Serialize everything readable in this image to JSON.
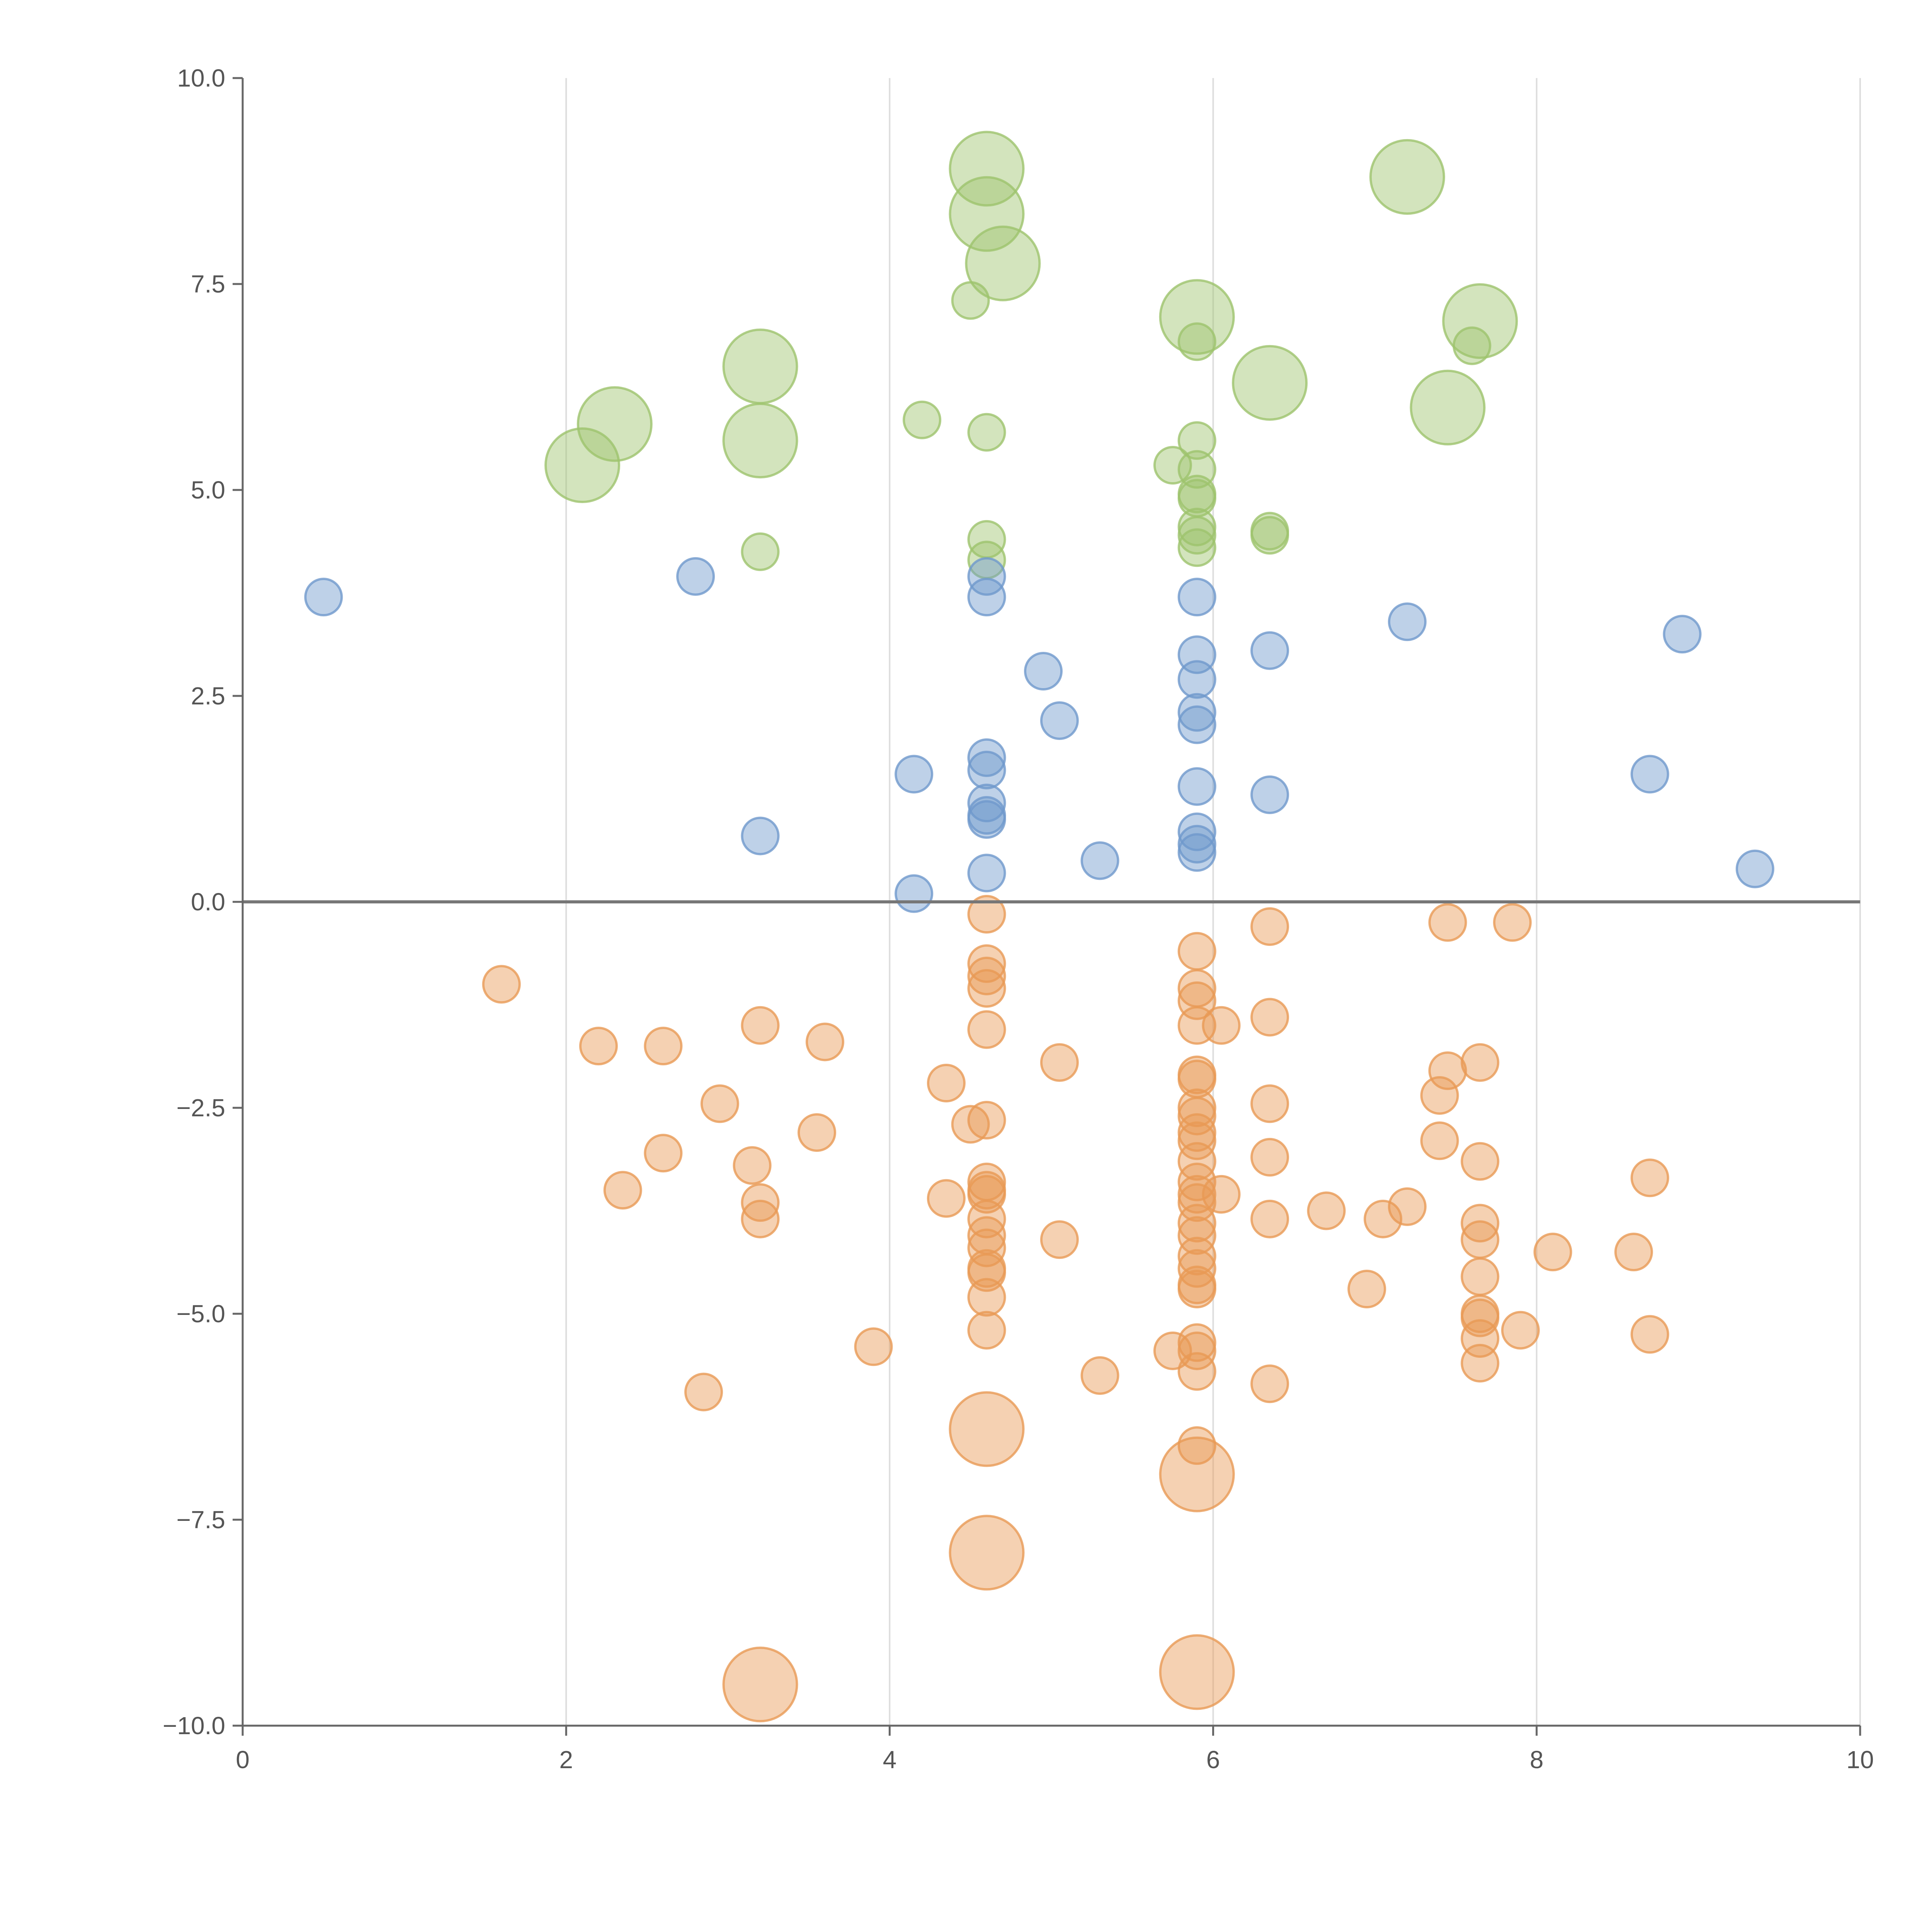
{
  "colors": {
    "positive_top": "#9dc36d",
    "positive": "#6f98cc",
    "negative": "#e89a55",
    "axis": "#666666",
    "grid": "#dddddd",
    "zero_line": "#777777",
    "tick_text": "#555555"
  },
  "chart_data": {
    "type": "scatter",
    "title": "",
    "xlabel": "",
    "ylabel": "",
    "xlim": [
      0,
      10
    ],
    "ylim": [
      -10,
      10
    ],
    "x_ticks": [
      0,
      2,
      4,
      6,
      8,
      10
    ],
    "x_tick_labels": [
      "0",
      "2",
      "4",
      "6",
      "8",
      "10"
    ],
    "y_ticks": [
      10,
      7.5,
      5,
      2.5,
      0,
      -2.5,
      -5,
      -7.5,
      -10
    ],
    "y_tick_labels": [
      "10.0",
      "7.5",
      "5.0",
      "2.5",
      "0.0",
      "−2.5",
      "−5.0",
      "−7.5",
      "−10.0"
    ],
    "grid": "vertical",
    "series": [
      {
        "name": "top",
        "color_key": "positive_top",
        "points": [
          [
            4.6,
            8.9,
            1.9
          ],
          [
            4.6,
            8.35,
            1.9
          ],
          [
            4.7,
            7.75,
            1.9
          ],
          [
            4.5,
            7.3,
            0.9
          ],
          [
            7.2,
            8.8,
            1.9
          ],
          [
            5.9,
            7.1,
            1.9
          ],
          [
            5.9,
            6.8,
            0.9
          ],
          [
            7.65,
            7.05,
            1.9
          ],
          [
            7.6,
            6.75,
            0.9
          ],
          [
            6.35,
            6.3,
            1.9
          ],
          [
            7.45,
            6.0,
            1.9
          ],
          [
            3.2,
            6.5,
            1.9
          ],
          [
            3.2,
            5.6,
            1.9
          ],
          [
            2.3,
            5.8,
            1.9
          ],
          [
            2.1,
            5.3,
            1.9
          ],
          [
            4.2,
            5.85,
            0.9
          ],
          [
            4.6,
            5.7,
            0.9
          ],
          [
            5.75,
            5.3,
            0.9
          ],
          [
            5.9,
            5.6,
            0.9
          ],
          [
            5.9,
            5.25,
            0.9
          ],
          [
            5.9,
            4.95,
            0.9
          ],
          [
            5.9,
            4.9,
            0.9
          ],
          [
            5.9,
            4.55,
            0.9
          ],
          [
            5.9,
            4.45,
            0.9
          ],
          [
            5.9,
            4.3,
            0.9
          ],
          [
            6.35,
            4.5,
            0.9
          ],
          [
            6.35,
            4.45,
            0.9
          ],
          [
            4.6,
            4.4,
            0.9
          ],
          [
            4.6,
            4.15,
            0.9
          ],
          [
            3.2,
            4.25,
            0.9
          ]
        ]
      },
      {
        "name": "positive",
        "color_key": "positive",
        "points": [
          [
            0.5,
            3.7,
            0.9
          ],
          [
            2.8,
            3.95,
            0.9
          ],
          [
            4.6,
            3.95,
            0.9
          ],
          [
            4.6,
            3.7,
            0.9
          ],
          [
            5.9,
            3.7,
            0.9
          ],
          [
            7.2,
            3.4,
            0.9
          ],
          [
            8.9,
            3.25,
            0.9
          ],
          [
            6.35,
            3.05,
            0.9
          ],
          [
            5.9,
            3.0,
            0.9
          ],
          [
            4.95,
            2.8,
            0.9
          ],
          [
            5.9,
            2.7,
            0.9
          ],
          [
            5.9,
            2.3,
            0.9
          ],
          [
            5.05,
            2.2,
            0.9
          ],
          [
            5.9,
            2.15,
            0.9
          ],
          [
            4.6,
            1.75,
            0.9
          ],
          [
            4.6,
            1.6,
            0.9
          ],
          [
            4.15,
            1.55,
            0.9
          ],
          [
            8.7,
            1.55,
            0.9
          ],
          [
            5.9,
            1.4,
            0.9
          ],
          [
            6.35,
            1.3,
            0.9
          ],
          [
            4.6,
            1.2,
            0.9
          ],
          [
            4.6,
            1.05,
            0.9
          ],
          [
            4.6,
            1.0,
            0.9
          ],
          [
            5.9,
            0.85,
            0.9
          ],
          [
            3.2,
            0.8,
            0.9
          ],
          [
            5.9,
            0.7,
            0.9
          ],
          [
            5.9,
            0.6,
            0.9
          ],
          [
            5.3,
            0.5,
            0.9
          ],
          [
            4.6,
            0.35,
            0.9
          ],
          [
            9.35,
            0.4,
            0.9
          ],
          [
            4.15,
            0.1,
            0.9
          ]
        ]
      },
      {
        "name": "negative",
        "color_key": "negative",
        "points": [
          [
            4.6,
            -0.15,
            0.9
          ],
          [
            6.35,
            -0.3,
            0.9
          ],
          [
            7.45,
            -0.25,
            0.9
          ],
          [
            7.85,
            -0.25,
            0.9
          ],
          [
            5.9,
            -0.6,
            0.9
          ],
          [
            4.6,
            -0.75,
            0.9
          ],
          [
            4.6,
            -0.9,
            0.9
          ],
          [
            4.6,
            -1.05,
            0.9
          ],
          [
            1.6,
            -1.0,
            0.9
          ],
          [
            5.9,
            -1.05,
            0.9
          ],
          [
            5.9,
            -1.2,
            0.9
          ],
          [
            5.9,
            -1.5,
            0.9
          ],
          [
            6.05,
            -1.5,
            0.9
          ],
          [
            6.35,
            -1.4,
            0.9
          ],
          [
            3.2,
            -1.5,
            0.9
          ],
          [
            4.6,
            -1.55,
            0.9
          ],
          [
            2.2,
            -1.75,
            0.9
          ],
          [
            2.6,
            -1.75,
            0.9
          ],
          [
            3.6,
            -1.7,
            0.9
          ],
          [
            5.05,
            -1.95,
            0.9
          ],
          [
            7.65,
            -1.95,
            0.9
          ],
          [
            7.45,
            -2.05,
            0.9
          ],
          [
            5.9,
            -2.1,
            0.9
          ],
          [
            5.9,
            -2.15,
            0.9
          ],
          [
            4.35,
            -2.2,
            0.9
          ],
          [
            7.4,
            -2.35,
            0.9
          ],
          [
            2.95,
            -2.45,
            0.9
          ],
          [
            6.35,
            -2.45,
            0.9
          ],
          [
            5.9,
            -2.5,
            0.9
          ],
          [
            5.9,
            -2.6,
            0.9
          ],
          [
            4.6,
            -2.65,
            0.9
          ],
          [
            4.5,
            -2.7,
            0.9
          ],
          [
            5.9,
            -2.8,
            0.9
          ],
          [
            3.55,
            -2.8,
            0.9
          ],
          [
            5.9,
            -2.9,
            0.9
          ],
          [
            7.4,
            -2.9,
            0.9
          ],
          [
            2.6,
            -3.05,
            0.9
          ],
          [
            6.35,
            -3.1,
            0.9
          ],
          [
            7.65,
            -3.15,
            0.9
          ],
          [
            5.9,
            -3.15,
            0.9
          ],
          [
            3.15,
            -3.2,
            0.9
          ],
          [
            8.7,
            -3.35,
            0.9
          ],
          [
            4.6,
            -3.4,
            0.9
          ],
          [
            5.9,
            -3.4,
            0.9
          ],
          [
            4.6,
            -3.5,
            0.9
          ],
          [
            2.35,
            -3.5,
            0.9
          ],
          [
            4.6,
            -3.55,
            0.9
          ],
          [
            5.9,
            -3.55,
            0.9
          ],
          [
            6.05,
            -3.55,
            0.9
          ],
          [
            4.35,
            -3.6,
            0.9
          ],
          [
            5.9,
            -3.65,
            0.9
          ],
          [
            3.2,
            -3.65,
            0.9
          ],
          [
            6.7,
            -3.75,
            0.9
          ],
          [
            7.2,
            -3.7,
            0.9
          ],
          [
            6.35,
            -3.85,
            0.9
          ],
          [
            3.2,
            -3.85,
            0.9
          ],
          [
            7.05,
            -3.85,
            0.9
          ],
          [
            7.65,
            -3.9,
            0.9
          ],
          [
            4.6,
            -3.85,
            0.9
          ],
          [
            5.9,
            -3.9,
            0.9
          ],
          [
            5.9,
            -4.05,
            0.9
          ],
          [
            4.6,
            -4.05,
            0.9
          ],
          [
            5.05,
            -4.1,
            0.9
          ],
          [
            7.65,
            -4.1,
            0.9
          ],
          [
            4.6,
            -4.2,
            0.9
          ],
          [
            8.1,
            -4.25,
            0.9
          ],
          [
            8.6,
            -4.25,
            0.9
          ],
          [
            5.9,
            -4.3,
            0.9
          ],
          [
            5.9,
            -4.45,
            0.9
          ],
          [
            4.6,
            -4.45,
            0.9
          ],
          [
            4.6,
            -4.5,
            0.9
          ],
          [
            7.65,
            -4.55,
            0.9
          ],
          [
            5.9,
            -4.65,
            0.9
          ],
          [
            5.9,
            -4.7,
            0.9
          ],
          [
            6.95,
            -4.7,
            0.9
          ],
          [
            4.6,
            -4.8,
            0.9
          ],
          [
            7.65,
            -5.0,
            0.9
          ],
          [
            7.65,
            -5.05,
            0.9
          ],
          [
            4.6,
            -5.2,
            0.9
          ],
          [
            7.9,
            -5.2,
            0.9
          ],
          [
            8.7,
            -5.25,
            0.9
          ],
          [
            7.65,
            -5.3,
            0.9
          ],
          [
            5.9,
            -5.35,
            0.9
          ],
          [
            3.9,
            -5.4,
            0.9
          ],
          [
            5.75,
            -5.45,
            0.9
          ],
          [
            5.9,
            -5.45,
            0.9
          ],
          [
            7.65,
            -5.6,
            0.9
          ],
          [
            5.9,
            -5.7,
            0.9
          ],
          [
            5.3,
            -5.75,
            0.9
          ],
          [
            6.35,
            -5.85,
            0.9
          ],
          [
            2.85,
            -5.95,
            0.9
          ],
          [
            5.9,
            -6.6,
            0.9
          ],
          [
            4.6,
            -6.4,
            1.9
          ],
          [
            5.9,
            -6.95,
            1.9
          ],
          [
            4.6,
            -7.9,
            1.9
          ],
          [
            3.2,
            -9.5,
            1.9
          ],
          [
            5.9,
            -9.35,
            1.9
          ]
        ]
      }
    ]
  }
}
